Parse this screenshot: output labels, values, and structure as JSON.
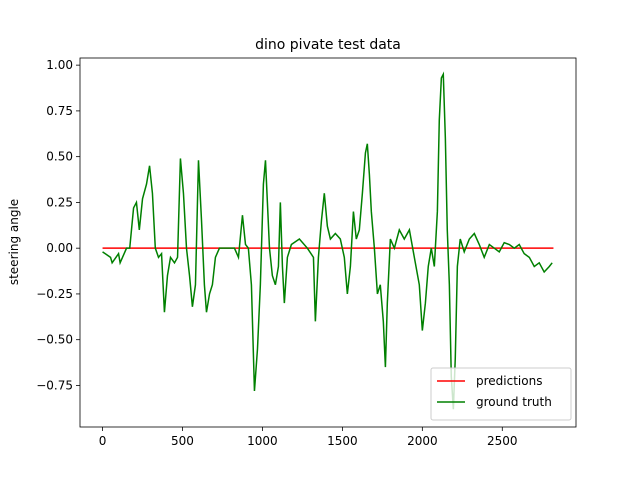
{
  "chart_data": {
    "type": "line",
    "title": "dino pivate test data",
    "y_label": "steering angle",
    "xlim": [
      -141,
      2961
    ],
    "xticks": [
      0,
      500,
      1000,
      1500,
      2000,
      2500
    ],
    "ylim": [
      -0.977,
      1.039
    ],
    "yticks": [
      {
        "value": -0.75,
        "label": "−0.75"
      },
      {
        "value": -0.5,
        "label": "−0.50"
      },
      {
        "value": -0.25,
        "label": "−0.25"
      },
      {
        "value": 0,
        "label": "0.00"
      },
      {
        "value": 0.25,
        "label": "0.25"
      },
      {
        "value": 0.5,
        "label": "0.50"
      },
      {
        "value": 0.75,
        "label": "0.75"
      },
      {
        "value": 1,
        "label": "1.00"
      }
    ],
    "legend": "lower right",
    "series": [
      {
        "name": "predictions",
        "color": "#ff0000",
        "x": [
          0,
          2820
        ],
        "values": [
          0,
          0
        ]
      },
      {
        "name": "ground truth",
        "color": "#008000",
        "x": [
          0,
          50,
          60,
          100,
          110,
          150,
          170,
          194,
          212,
          230,
          250,
          275,
          294,
          312,
          330,
          350,
          369,
          387,
          406,
          425,
          450,
          469,
          487,
          506,
          525,
          544,
          562,
          581,
          600,
          619,
          637,
          650,
          669,
          687,
          706,
          731,
          781,
          825,
          850,
          875,
          894,
          912,
          931,
          950,
          969,
          987,
          1006,
          1019,
          1031,
          1044,
          1062,
          1081,
          1100,
          1112,
          1125,
          1137,
          1156,
          1181,
          1231,
          1281,
          1319,
          1331,
          1350,
          1369,
          1387,
          1406,
          1425,
          1456,
          1487,
          1512,
          1531,
          1550,
          1569,
          1587,
          1606,
          1625,
          1644,
          1656,
          1669,
          1681,
          1700,
          1719,
          1737,
          1756,
          1769,
          1781,
          1800,
          1825,
          1856,
          1887,
          1919,
          1950,
          1981,
          2000,
          2019,
          2037,
          2056,
          2075,
          2094,
          2106,
          2119,
          2131,
          2144,
          2156,
          2169,
          2181,
          2194,
          2206,
          2219,
          2237,
          2262,
          2294,
          2325,
          2356,
          2387,
          2419,
          2450,
          2481,
          2512,
          2544,
          2575,
          2606,
          2637,
          2669,
          2700,
          2731,
          2762,
          2794,
          2812
        ],
        "values": [
          -0.02,
          -0.05,
          -0.08,
          -0.03,
          -0.08,
          0.0,
          0.0,
          0.22,
          0.25,
          0.1,
          0.27,
          0.35,
          0.45,
          0.3,
          0.0,
          -0.05,
          -0.03,
          -0.35,
          -0.15,
          -0.05,
          -0.08,
          -0.05,
          0.49,
          0.3,
          0.0,
          -0.15,
          -0.32,
          -0.2,
          0.48,
          0.15,
          -0.2,
          -0.35,
          -0.25,
          -0.2,
          -0.05,
          0.0,
          0.0,
          0.0,
          -0.05,
          0.18,
          0.02,
          0.0,
          -0.2,
          -0.78,
          -0.55,
          -0.2,
          0.35,
          0.48,
          0.25,
          0.0,
          -0.15,
          -0.2,
          -0.1,
          0.25,
          -0.1,
          -0.3,
          -0.05,
          0.02,
          0.05,
          0.0,
          -0.05,
          -0.4,
          -0.05,
          0.15,
          0.3,
          0.12,
          0.05,
          0.08,
          0.05,
          -0.05,
          -0.25,
          -0.1,
          0.2,
          0.05,
          0.1,
          0.3,
          0.52,
          0.57,
          0.4,
          0.2,
          0.0,
          -0.25,
          -0.2,
          -0.4,
          -0.65,
          -0.3,
          0.05,
          0.0,
          0.1,
          0.05,
          0.1,
          -0.05,
          -0.2,
          -0.45,
          -0.3,
          -0.1,
          0.0,
          -0.1,
          0.2,
          0.7,
          0.93,
          0.95,
          0.6,
          0.1,
          -0.2,
          -0.7,
          -0.88,
          -0.6,
          -0.1,
          0.05,
          -0.02,
          0.05,
          0.08,
          0.02,
          -0.05,
          0.02,
          0.0,
          -0.02,
          0.03,
          0.02,
          0.0,
          0.02,
          -0.03,
          -0.05,
          -0.1,
          -0.08,
          -0.13,
          -0.1,
          -0.08
        ]
      }
    ]
  }
}
